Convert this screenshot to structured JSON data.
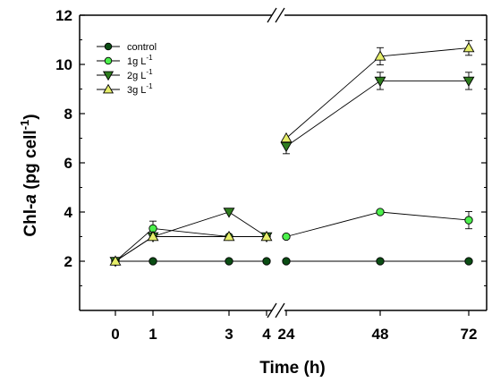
{
  "chart_data": {
    "type": "line",
    "xlabel": "Time (h)",
    "ylabel": {
      "main": "Chl-",
      "italic": "a",
      "unit": " (pg cell",
      "exp": "-1",
      "close": ")"
    },
    "ylim": [
      0,
      12
    ],
    "yticks": [
      2,
      4,
      6,
      8,
      10,
      12
    ],
    "x": [
      0,
      1,
      3,
      4,
      24,
      48,
      72
    ],
    "x_tick_labels": [
      "0",
      "1",
      "3",
      "4",
      "24",
      "48",
      "72"
    ],
    "axis_break": "between 4 and 24",
    "series": [
      {
        "name": "control",
        "legend_main": "control",
        "legend_unit": "",
        "legend_exp": "",
        "marker": "circle",
        "fill": "#0b4d14",
        "values": [
          2.0,
          2.0,
          2.0,
          2.0,
          2.0,
          2.0,
          2.0
        ],
        "errors": [
          0,
          0,
          0,
          0,
          0,
          0,
          0
        ]
      },
      {
        "name": "1g L-1",
        "legend_main": "1g L",
        "legend_unit": "",
        "legend_exp": "-1",
        "marker": "circle",
        "fill": "#4cf04c",
        "values": [
          2.0,
          3.33,
          3.0,
          3.0,
          3.0,
          4.0,
          3.67
        ],
        "errors": [
          0,
          0.3,
          0,
          0,
          0,
          0,
          0.35
        ]
      },
      {
        "name": "2g L-1",
        "legend_main": "2g L",
        "legend_unit": "",
        "legend_exp": "-1",
        "marker": "triangle-down",
        "fill": "#2e7d1e",
        "values": [
          2.0,
          3.0,
          4.0,
          3.0,
          6.67,
          9.33,
          9.33
        ],
        "errors": [
          0,
          0,
          0,
          0,
          0.3,
          0.35,
          0.35
        ]
      },
      {
        "name": "3g L-1",
        "legend_main": "3g L",
        "legend_unit": "",
        "legend_exp": "-1",
        "marker": "triangle-up",
        "fill": "#e6ee6a",
        "values": [
          2.0,
          3.0,
          3.0,
          3.0,
          7.0,
          10.33,
          10.67
        ],
        "errors": [
          0,
          0,
          0,
          0,
          0,
          0.35,
          0.3
        ]
      }
    ],
    "legend_position": "top-left"
  }
}
